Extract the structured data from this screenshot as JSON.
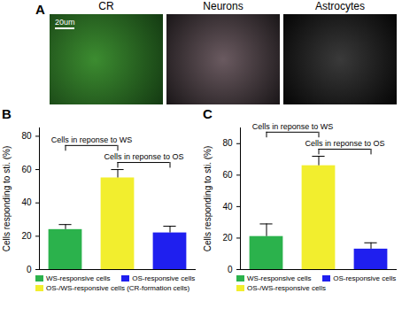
{
  "panel_a": {
    "label": "A",
    "scale_bar": "20um",
    "images": [
      {
        "title": "CR"
      },
      {
        "title": "Neurons"
      },
      {
        "title": "Astrocytes"
      }
    ]
  },
  "chart_data": [
    {
      "type": "bar",
      "label": "B",
      "y_label": "Cells responding to sti. (%)",
      "ylim": [
        0,
        85
      ],
      "yticks": [
        0,
        20,
        40,
        60,
        80
      ],
      "tick_labels": "y",
      "legend": "bottom",
      "series": [
        {
          "name": "WS-responsive cells",
          "color": "#2bb24c",
          "values": [
            24
          ],
          "errors": [
            3
          ]
        },
        {
          "name": "OS-/WS-responsive cells (CR-formation cells)",
          "color": "#f2ee2e",
          "values": [
            55
          ],
          "errors": [
            5
          ]
        },
        {
          "name": "OS-responsive cells",
          "color": "#1f1fef",
          "values": [
            22
          ],
          "errors": [
            4
          ]
        }
      ],
      "annotations": [
        {
          "text": "Cells in reponse to WS",
          "from": "WS-responsive cells",
          "to": "OS-/WS-responsive cells (CR-formation cells)"
        },
        {
          "text": "Cells in reponse to OS",
          "from": "OS-/WS-responsive cells (CR-formation cells)",
          "to": "OS-responsive cells"
        }
      ]
    },
    {
      "type": "bar",
      "label": "C",
      "y_label": "Cells responding to sti. (%)",
      "ylim": [
        0,
        90
      ],
      "yticks": [
        0,
        20,
        40,
        60,
        80
      ],
      "tick_labels": "y",
      "legend": "bottom",
      "series": [
        {
          "name": "WS-responsive cells",
          "color": "#2bb24c",
          "values": [
            21
          ],
          "errors": [
            8
          ]
        },
        {
          "name": "OS-/WS-responsive cells",
          "color": "#f2ee2e",
          "values": [
            66
          ],
          "errors": [
            6
          ]
        },
        {
          "name": "OS-responsive cells",
          "color": "#1f1fef",
          "values": [
            13
          ],
          "errors": [
            4
          ]
        }
      ],
      "annotations": [
        {
          "text": "Cells in reponse to WS",
          "from": "WS-responsive cells",
          "to": "OS-/WS-responsive cells"
        },
        {
          "text": "Cells in reponse to OS",
          "from": "OS-/WS-responsive cells",
          "to": "OS-responsive cells"
        }
      ]
    }
  ]
}
